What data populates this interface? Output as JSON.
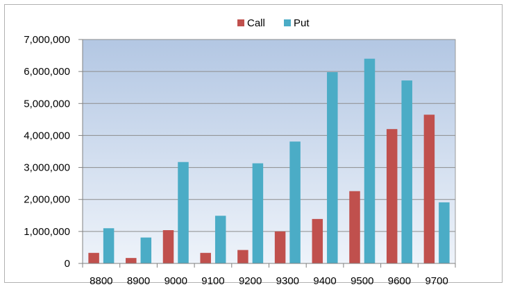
{
  "chart_data": {
    "type": "bar",
    "categories": [
      "8800",
      "8900",
      "9000",
      "9100",
      "9200",
      "9300",
      "9400",
      "9500",
      "9600",
      "9700"
    ],
    "series": [
      {
        "name": "Call",
        "color": "#c0504d",
        "values": [
          330000,
          170000,
          1040000,
          330000,
          420000,
          1000000,
          1390000,
          2260000,
          4200000,
          4650000
        ]
      },
      {
        "name": "Put",
        "color": "#4bacc6",
        "values": [
          1100000,
          810000,
          3170000,
          1490000,
          3130000,
          3810000,
          5980000,
          6400000,
          5720000,
          1910000
        ]
      }
    ],
    "ylim": [
      0,
      7000000
    ],
    "yticks": [
      "0",
      "1,000,000",
      "2,000,000",
      "3,000,000",
      "4,000,000",
      "5,000,000",
      "6,000,000",
      "7,000,000"
    ],
    "ytick_values": [
      0,
      1000000,
      2000000,
      3000000,
      4000000,
      5000000,
      6000000,
      7000000
    ],
    "grid": true,
    "legend_position": "top",
    "plot_background": "gradient light blue"
  }
}
